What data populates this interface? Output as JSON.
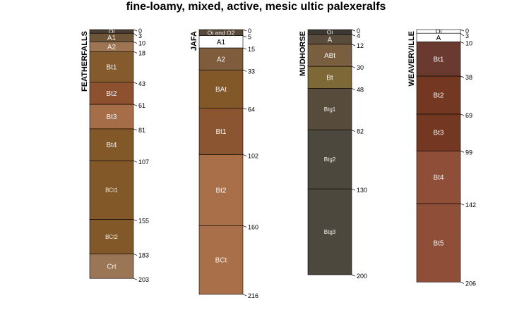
{
  "title": "fine-loamy, mixed, active, mesic ultic palexeralfs",
  "profiles": [
    {
      "name": "FEATHERFALLS",
      "horizons": [
        {
          "name": "Oi",
          "top": 0,
          "bottom": 3,
          "color": "#4a4038"
        },
        {
          "name": "A1",
          "top": 3,
          "bottom": 10,
          "color": "#6e5538"
        },
        {
          "name": "A2",
          "top": 10,
          "bottom": 18,
          "color": "#9e7552"
        },
        {
          "name": "Bt1",
          "top": 18,
          "bottom": 43,
          "color": "#855a2c"
        },
        {
          "name": "Bt2",
          "top": 43,
          "bottom": 61,
          "color": "#8e5130"
        },
        {
          "name": "Bt3",
          "top": 61,
          "bottom": 81,
          "color": "#a56e48"
        },
        {
          "name": "Bt4",
          "top": 81,
          "bottom": 107,
          "color": "#835828"
        },
        {
          "name": "BCt1",
          "top": 107,
          "bottom": 155,
          "color": "#835828"
        },
        {
          "name": "BCt2",
          "top": 155,
          "bottom": 183,
          "color": "#835828"
        },
        {
          "name": "Crt",
          "top": 183,
          "bottom": 203,
          "color": "#9a7656"
        }
      ]
    },
    {
      "name": "JAFA",
      "horizons": [
        {
          "name": "Oi and O2",
          "top": 0,
          "bottom": 5,
          "color": "#5a4a3a"
        },
        {
          "name": "A1",
          "top": 5,
          "bottom": 15,
          "color": "#ffffff"
        },
        {
          "name": "A2",
          "top": 15,
          "bottom": 33,
          "color": "#7e5c3c"
        },
        {
          "name": "BAt",
          "top": 33,
          "bottom": 64,
          "color": "#835828"
        },
        {
          "name": "Bt1",
          "top": 64,
          "bottom": 102,
          "color": "#8a5530"
        },
        {
          "name": "Bt2",
          "top": 102,
          "bottom": 160,
          "color": "#a86f48"
        },
        {
          "name": "BCt",
          "top": 160,
          "bottom": 216,
          "color": "#a86f48"
        }
      ]
    },
    {
      "name": "MUDHORSE",
      "horizons": [
        {
          "name": "Oi",
          "top": 0,
          "bottom": 4,
          "color": "#3c3832"
        },
        {
          "name": "A",
          "top": 4,
          "bottom": 12,
          "color": "#5a4c3c"
        },
        {
          "name": "ABt",
          "top": 12,
          "bottom": 30,
          "color": "#7a5e40"
        },
        {
          "name": "Bt",
          "top": 30,
          "bottom": 48,
          "color": "#7e6838"
        },
        {
          "name": "Btg1",
          "top": 48,
          "bottom": 82,
          "color": "#574c3c"
        },
        {
          "name": "Btg2",
          "top": 82,
          "bottom": 130,
          "color": "#4c483e"
        },
        {
          "name": "Btg3",
          "top": 130,
          "bottom": 200,
          "color": "#4c483e"
        }
      ]
    },
    {
      "name": "WEAVERVILLE",
      "horizons": [
        {
          "name": "Oi",
          "top": 0,
          "bottom": 3,
          "color": "#ffffff"
        },
        {
          "name": "A",
          "top": 3,
          "bottom": 10,
          "color": "#ffffff"
        },
        {
          "name": "Bt1",
          "top": 10,
          "bottom": 38,
          "color": "#6a3a30"
        },
        {
          "name": "Bt2",
          "top": 38,
          "bottom": 69,
          "color": "#743822"
        },
        {
          "name": "Bt3",
          "top": 69,
          "bottom": 99,
          "color": "#743822"
        },
        {
          "name": "Bt4",
          "top": 99,
          "bottom": 142,
          "color": "#8e4e38"
        },
        {
          "name": "Bt5",
          "top": 142,
          "bottom": 206,
          "color": "#8e4e38"
        }
      ]
    }
  ]
}
